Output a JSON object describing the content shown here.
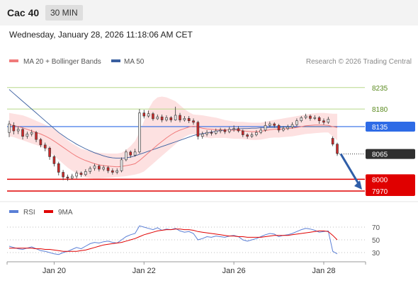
{
  "header": {
    "instrument": "Cac 40",
    "timeframe": "30 MIN"
  },
  "datetime": "Wednesday, January 28, 2026 11:18:06 AM CET",
  "legend": {
    "ma20_bb": "MA 20 + Bollinger Bands",
    "ma50": "MA 50",
    "credit": "Research © 2026 Trading Central"
  },
  "rsi_legend": {
    "rsi": "RSI",
    "ma9": "9MA"
  },
  "colors": {
    "up": "#e8e8e8",
    "down": "#cc2a2a",
    "ma20": "#f07a7a",
    "ma50": "#3a5fa0",
    "bb_fill": "#fddede",
    "resistance": "#b8d98a",
    "pivot": "#2e6be6",
    "support": "#e00000",
    "rsi": "#5a7fd6",
    "rsi_ma": "#e00000",
    "arrow": "#2f5ea8"
  },
  "chart_data": [
    {
      "type": "candlestick",
      "ylim": [
        7950,
        8260
      ],
      "x_labels": [
        "Jan 20",
        "Jan 22",
        "Jan 26",
        "Jan 28"
      ],
      "x_label_index": [
        10,
        30,
        50,
        70
      ],
      "levels": [
        {
          "value": 8235,
          "label": "8235",
          "kind": "resistance"
        },
        {
          "value": 8180,
          "label": "8180",
          "kind": "resistance"
        },
        {
          "value": 8135,
          "label": "8135",
          "kind": "pivot"
        },
        {
          "value": 8065,
          "label": "8065",
          "kind": "last"
        },
        {
          "value": 8000,
          "label": "8000",
          "kind": "support"
        },
        {
          "value": 7970,
          "label": "7970",
          "kind": "support"
        }
      ],
      "candles": [
        [
          8120,
          8142,
          8150,
          8108
        ],
        [
          8138,
          8124,
          8146,
          8115
        ],
        [
          8124,
          8128,
          8136,
          8116
        ],
        [
          8128,
          8110,
          8132,
          8102
        ],
        [
          8110,
          8116,
          8122,
          8104
        ],
        [
          8116,
          8120,
          8127,
          8110
        ],
        [
          8120,
          8102,
          8124,
          8095
        ],
        [
          8102,
          8088,
          8106,
          8082
        ],
        [
          8088,
          8080,
          8094,
          8072
        ],
        [
          8080,
          8058,
          8084,
          8050
        ],
        [
          8058,
          8040,
          8062,
          8033
        ],
        [
          8040,
          8018,
          8045,
          8010
        ],
        [
          8018,
          8006,
          8024,
          7998
        ],
        [
          8006,
          8003,
          8012,
          7996
        ],
        [
          8003,
          8008,
          8014,
          7999
        ],
        [
          8008,
          8016,
          8022,
          8002
        ],
        [
          8016,
          8012,
          8020,
          8006
        ],
        [
          8012,
          8020,
          8026,
          8008
        ],
        [
          8020,
          8028,
          8033,
          8014
        ],
        [
          8028,
          8034,
          8040,
          8022
        ],
        [
          8034,
          8026,
          8038,
          8020
        ],
        [
          8026,
          8030,
          8036,
          8021
        ],
        [
          8030,
          8022,
          8034,
          8016
        ],
        [
          8022,
          8018,
          8028,
          8012
        ],
        [
          8018,
          8022,
          8028,
          8013
        ],
        [
          8022,
          8050,
          8056,
          8018
        ],
        [
          8050,
          8070,
          8076,
          8046
        ],
        [
          8070,
          8062,
          8074,
          8055
        ],
        [
          8062,
          8070,
          8078,
          8058
        ],
        [
          8070,
          8170,
          8180,
          8066
        ],
        [
          8170,
          8162,
          8178,
          8156
        ],
        [
          8162,
          8168,
          8176,
          8158
        ],
        [
          8168,
          8155,
          8172,
          8150
        ],
        [
          8155,
          8160,
          8166,
          8152
        ],
        [
          8160,
          8152,
          8166,
          8146
        ],
        [
          8152,
          8158,
          8164,
          8148
        ],
        [
          8158,
          8152,
          8162,
          8146
        ],
        [
          8152,
          8164,
          8186,
          8150
        ],
        [
          8164,
          8152,
          8170,
          8146
        ],
        [
          8152,
          8156,
          8162,
          8148
        ],
        [
          8156,
          8150,
          8162,
          8144
        ],
        [
          8150,
          8146,
          8156,
          8140
        ],
        [
          8146,
          8110,
          8150,
          8102
        ],
        [
          8110,
          8116,
          8122,
          8104
        ],
        [
          8116,
          8120,
          8126,
          8110
        ],
        [
          8120,
          8118,
          8126,
          8112
        ],
        [
          8118,
          8124,
          8130,
          8114
        ],
        [
          8124,
          8126,
          8132,
          8118
        ],
        [
          8126,
          8122,
          8130,
          8116
        ],
        [
          8122,
          8128,
          8134,
          8118
        ],
        [
          8128,
          8130,
          8138,
          8122
        ],
        [
          8130,
          8124,
          8136,
          8120
        ],
        [
          8124,
          8114,
          8128,
          8108
        ],
        [
          8114,
          8110,
          8118,
          8104
        ],
        [
          8110,
          8114,
          8120,
          8106
        ],
        [
          8114,
          8120,
          8126,
          8110
        ],
        [
          8120,
          8126,
          8132,
          8116
        ],
        [
          8126,
          8138,
          8148,
          8122
        ],
        [
          8138,
          8142,
          8148,
          8134
        ],
        [
          8142,
          8138,
          8146,
          8132
        ],
        [
          8138,
          8126,
          8142,
          8120
        ],
        [
          8126,
          8130,
          8136,
          8122
        ],
        [
          8130,
          8134,
          8140,
          8126
        ],
        [
          8134,
          8140,
          8146,
          8130
        ],
        [
          8140,
          8150,
          8156,
          8136
        ],
        [
          8150,
          8158,
          8162,
          8146
        ],
        [
          8158,
          8162,
          8168,
          8154
        ],
        [
          8162,
          8156,
          8166,
          8150
        ],
        [
          8156,
          8158,
          8164,
          8152
        ],
        [
          8158,
          8150,
          8162,
          8142
        ],
        [
          8150,
          8146,
          8156,
          8140
        ],
        [
          8146,
          8154,
          8160,
          8142
        ],
        [
          8105,
          8090,
          8110,
          8085
        ],
        [
          8090,
          8066,
          8094,
          8060
        ]
      ],
      "ma20": [
        8140,
        8138,
        8135,
        8132,
        8128,
        8124,
        8120,
        8116,
        8111,
        8105,
        8098,
        8090,
        8082,
        8074,
        8066,
        8059,
        8053,
        8048,
        8044,
        8040,
        8037,
        8035,
        8034,
        8033,
        8032,
        8033,
        8035,
        8037,
        8040,
        8048,
        8058,
        8068,
        8078,
        8088,
        8097,
        8106,
        8114,
        8121,
        8126,
        8130,
        8134,
        8136,
        8134,
        8131,
        8129,
        8128,
        8127,
        8127,
        8127,
        8126,
        8126,
        8126,
        8124,
        8123,
        8122,
        8122,
        8123,
        8125,
        8127,
        8128,
        8128,
        8129,
        8130,
        8131,
        8133,
        8135,
        8137,
        8138,
        8139,
        8139,
        8139,
        8138,
        8135,
        8133
      ],
      "ma50": [
        8230,
        8220,
        8210,
        8200,
        8190,
        8180,
        8170,
        8160,
        8150,
        8140,
        8130,
        8120,
        8112,
        8104,
        8097,
        8090,
        8084,
        8078,
        8073,
        8068,
        8064,
        8060,
        8057,
        8055,
        8054,
        8054,
        8055,
        8057,
        8060,
        8064,
        8068,
        8072,
        8076,
        8080,
        8084,
        8088,
        8092,
        8096,
        8100,
        8104,
        8108,
        8112,
        8115,
        8117,
        8119,
        8121,
        8123,
        8125,
        8126,
        8127,
        8128,
        8129,
        8130,
        8130,
        8131,
        8131,
        8132,
        8132,
        8133,
        8133,
        8133,
        8134,
        8134,
        8134,
        8134,
        8135,
        8135,
        8135,
        8135,
        8135,
        8135,
        8135,
        8135,
        8135
      ],
      "bb_upper": [
        8170,
        8168,
        8166,
        8164,
        8160,
        8155,
        8150,
        8145,
        8140,
        8135,
        8130,
        8120,
        8110,
        8100,
        8092,
        8085,
        8078,
        8075,
        8072,
        8070,
        8068,
        8067,
        8066,
        8066,
        8066,
        8068,
        8075,
        8085,
        8098,
        8120,
        8150,
        8180,
        8200,
        8210,
        8212,
        8210,
        8205,
        8200,
        8190,
        8180,
        8172,
        8166,
        8165,
        8164,
        8162,
        8160,
        8158,
        8155,
        8152,
        8150,
        8148,
        8147,
        8147,
        8146,
        8145,
        8145,
        8145,
        8147,
        8150,
        8152,
        8154,
        8156,
        8158,
        8160,
        8162,
        8164,
        8166,
        8168,
        8169,
        8170,
        8170,
        8169,
        8168,
        8168
      ],
      "bb_lower": [
        8110,
        8108,
        8104,
        8100,
        8096,
        8092,
        8088,
        8084,
        8078,
        8070,
        8060,
        8050,
        8040,
        8030,
        8022,
        8015,
        8010,
        8005,
        8003,
        8002,
        8002,
        8003,
        8004,
        8005,
        8006,
        8007,
        8008,
        8010,
        8012,
        8015,
        8020,
        8030,
        8040,
        8050,
        8060,
        8070,
        8080,
        8090,
        8100,
        8108,
        8114,
        8116,
        8112,
        8108,
        8106,
        8105,
        8106,
        8106,
        8106,
        8105,
        8104,
        8104,
        8103,
        8102,
        8101,
        8101,
        8102,
        8104,
        8106,
        8107,
        8107,
        8108,
        8109,
        8110,
        8112,
        8114,
        8116,
        8117,
        8118,
        8119,
        8120,
        8120,
        8110,
        8100
      ]
    },
    {
      "type": "line",
      "ylim": [
        18,
        78
      ],
      "y_ticks": [
        70,
        50,
        30
      ],
      "series": [
        {
          "name": "RSI",
          "values": [
            40,
            38,
            36,
            35,
            37,
            39,
            36,
            33,
            32,
            30,
            28,
            27,
            30,
            32,
            35,
            38,
            36,
            40,
            44,
            46,
            45,
            47,
            48,
            46,
            45,
            50,
            55,
            58,
            60,
            72,
            70,
            68,
            66,
            69,
            65,
            67,
            66,
            68,
            64,
            62,
            63,
            60,
            50,
            52,
            55,
            54,
            56,
            55,
            54,
            56,
            57,
            55,
            50,
            48,
            50,
            52,
            55,
            58,
            60,
            59,
            55,
            57,
            58,
            60,
            63,
            66,
            68,
            67,
            65,
            62,
            63,
            64,
            32,
            28
          ]
        },
        {
          "name": "9MA",
          "values": [
            37,
            37,
            37,
            37,
            37,
            37,
            36,
            36,
            35,
            35,
            34,
            33,
            32,
            32,
            32,
            32,
            33,
            34,
            36,
            38,
            40,
            42,
            43,
            44,
            45,
            46,
            48,
            50,
            52,
            55,
            58,
            60,
            62,
            64,
            65,
            66,
            66,
            67,
            67,
            66,
            66,
            65,
            63,
            62,
            61,
            60,
            59,
            58,
            57,
            56,
            56,
            55,
            55,
            54,
            54,
            54,
            54,
            55,
            56,
            57,
            57,
            57,
            57,
            58,
            59,
            60,
            61,
            62,
            63,
            64,
            64,
            63,
            57,
            50
          ]
        }
      ]
    }
  ]
}
